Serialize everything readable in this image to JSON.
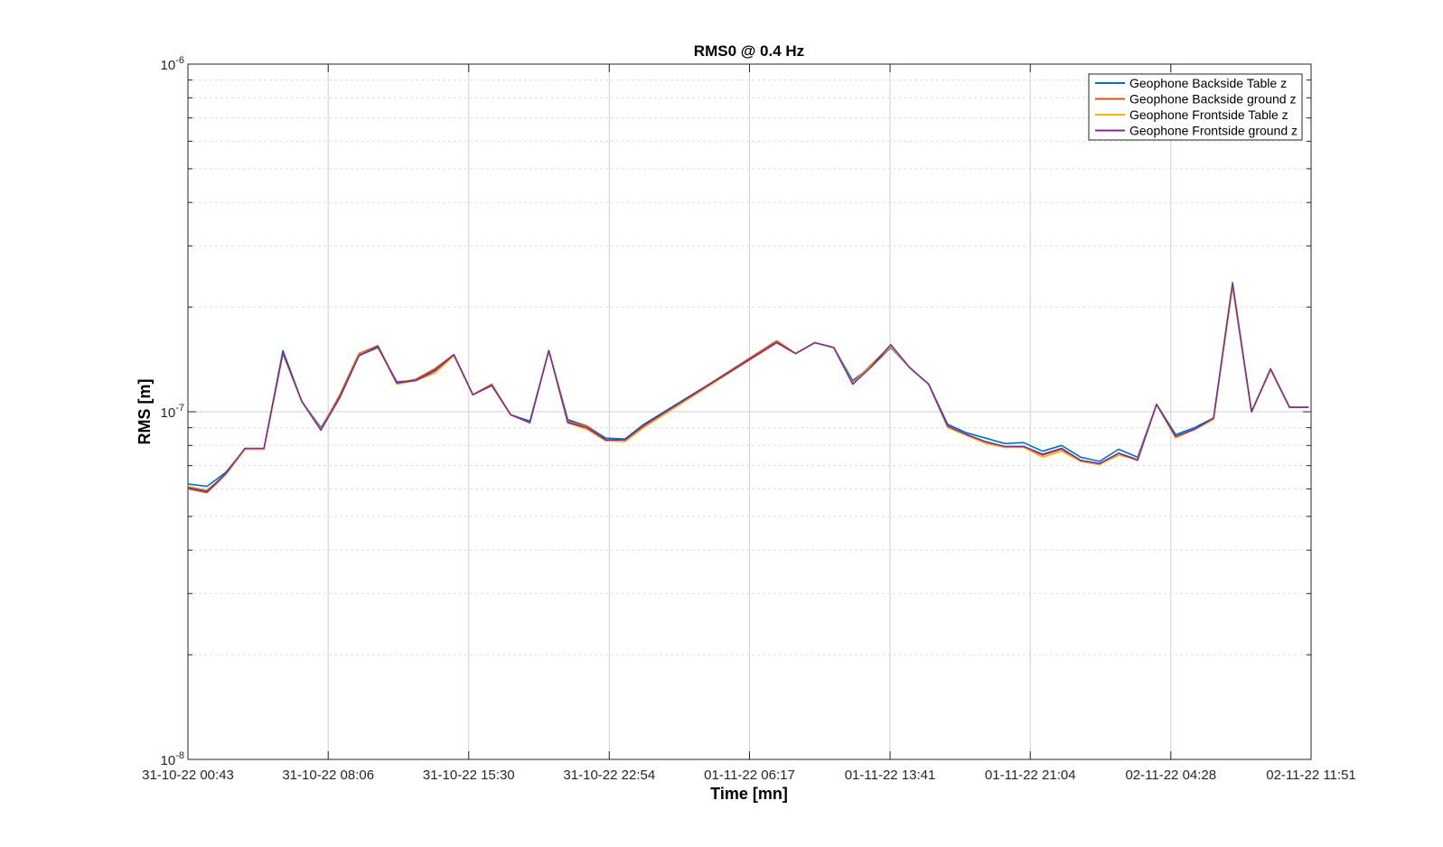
{
  "chart_data": {
    "type": "line",
    "title": "RMS0 @ 0.4 Hz",
    "xlabel": "Time [mn]",
    "ylabel": "RMS [m]",
    "y_scale": "log",
    "ylim": [
      1e-08,
      1e-06
    ],
    "y_ticks": [
      {
        "value": 1e-08,
        "base": "10",
        "exp": "-8"
      },
      {
        "value": 1e-07,
        "base": "10",
        "exp": "-7"
      },
      {
        "value": 1e-06,
        "base": "10",
        "exp": "-6"
      }
    ],
    "xlim": [
      "31-10-22 00:43",
      "02-11-22 11:51"
    ],
    "x_ticks": [
      "31-10-22 00:43",
      "31-10-22 08:06",
      "31-10-22 15:30",
      "31-10-22 22:54",
      "01-11-22 06:17",
      "01-11-22 13:41",
      "01-11-22 21:04",
      "02-11-22 04:28",
      "02-11-22 11:51"
    ],
    "grid": true,
    "minor_grid": true,
    "legend_position": "top-right",
    "x": [
      "31-10-22 00:43",
      "31-10-22 01:43",
      "31-10-22 02:43",
      "31-10-22 03:43",
      "31-10-22 04:43",
      "31-10-22 05:43",
      "31-10-22 06:43",
      "31-10-22 07:43",
      "31-10-22 08:43",
      "31-10-22 09:43",
      "31-10-22 10:43",
      "31-10-22 11:43",
      "31-10-22 12:43",
      "31-10-22 13:43",
      "31-10-22 14:43",
      "31-10-22 15:43",
      "31-10-22 16:43",
      "31-10-22 17:43",
      "31-10-22 18:43",
      "31-10-22 19:43",
      "31-10-22 20:43",
      "31-10-22 21:43",
      "31-10-22 22:43",
      "31-10-22 23:43",
      "01-11-22 00:43",
      "01-11-22 07:43",
      "01-11-22 08:43",
      "01-11-22 09:43",
      "01-11-22 10:43",
      "01-11-22 11:43",
      "01-11-22 12:43",
      "01-11-22 13:43",
      "01-11-22 14:43",
      "01-11-22 15:43",
      "01-11-22 16:43",
      "01-11-22 17:43",
      "01-11-22 18:43",
      "01-11-22 19:43",
      "01-11-22 20:43",
      "01-11-22 21:43",
      "01-11-22 22:43",
      "01-11-22 23:43",
      "02-11-22 00:43",
      "02-11-22 01:43",
      "02-11-22 02:43",
      "02-11-22 03:43",
      "02-11-22 04:43",
      "02-11-22 05:43",
      "02-11-22 06:43",
      "02-11-22 07:43",
      "02-11-22 08:43",
      "02-11-22 09:43",
      "02-11-22 10:43",
      "02-11-22 11:43"
    ],
    "series": [
      {
        "name": "Geophone Backside Table z",
        "color": "#0072BD",
        "values": [
          6.2e-08,
          6.1e-08,
          6.7e-08,
          7.8e-08,
          7.8e-08,
          1.5e-07,
          1.07e-07,
          9e-08,
          1.1e-07,
          1.45e-07,
          1.53e-07,
          1.22e-07,
          1.23e-07,
          1.32e-07,
          1.46e-07,
          1.12e-07,
          1.19e-07,
          9.8e-08,
          9.4e-08,
          1.5e-07,
          9.5e-08,
          9.1e-08,
          8.4e-08,
          8.35e-08,
          9.2e-08,
          1.58e-07,
          1.47e-07,
          1.58e-07,
          1.53e-07,
          1.23e-07,
          1.35e-07,
          1.53e-07,
          1.34e-07,
          1.2e-07,
          9.2e-08,
          8.7e-08,
          8.4e-08,
          8.1e-08,
          8.15e-08,
          7.7e-08,
          8e-08,
          7.4e-08,
          7.2e-08,
          7.8e-08,
          7.4e-08,
          1.05e-07,
          8.6e-08,
          9e-08,
          9.6e-08,
          2.3e-07,
          1e-07,
          1.32e-07,
          1.03e-07,
          1.03e-07
        ]
      },
      {
        "name": "Geophone Backside ground z",
        "color": "#D95319",
        "values": [
          6e-08,
          5.85e-08,
          6.6e-08,
          7.8e-08,
          7.8e-08,
          1.47e-07,
          1.07e-07,
          8.9e-08,
          1.12e-07,
          1.47e-07,
          1.55e-07,
          1.21e-07,
          1.24e-07,
          1.33e-07,
          1.46e-07,
          1.12e-07,
          1.2e-07,
          9.8e-08,
          9.3e-08,
          1.5e-07,
          9.4e-08,
          9.1e-08,
          8.3e-08,
          8.3e-08,
          9.1e-08,
          1.6e-07,
          1.47e-07,
          1.58e-07,
          1.53e-07,
          1.21e-07,
          1.37e-07,
          1.55e-07,
          1.34e-07,
          1.2e-07,
          9.1e-08,
          8.6e-08,
          8.2e-08,
          7.9e-08,
          7.95e-08,
          7.5e-08,
          7.8e-08,
          7.2e-08,
          7.05e-08,
          7.6e-08,
          7.3e-08,
          1.05e-07,
          8.5e-08,
          8.9e-08,
          9.5e-08,
          2.3e-07,
          1e-07,
          1.32e-07,
          1.03e-07,
          1.03e-07
        ]
      },
      {
        "name": "Geophone Frontside Table z",
        "color": "#EDB120",
        "values": [
          6.1e-08,
          5.95e-08,
          6.6e-08,
          7.8e-08,
          7.8e-08,
          1.47e-07,
          1.07e-07,
          8.9e-08,
          1.1e-07,
          1.46e-07,
          1.54e-07,
          1.2e-07,
          1.23e-07,
          1.29e-07,
          1.45e-07,
          1.12e-07,
          1.19e-07,
          9.8e-08,
          9.3e-08,
          1.5e-07,
          9.3e-08,
          8.9e-08,
          8.25e-08,
          8.2e-08,
          9e-08,
          1.58e-07,
          1.47e-07,
          1.58e-07,
          1.53e-07,
          1.21e-07,
          1.36e-07,
          1.54e-07,
          1.34e-07,
          1.2e-07,
          9e-08,
          8.55e-08,
          8.1e-08,
          7.9e-08,
          7.9e-08,
          7.4e-08,
          7.7e-08,
          7.2e-08,
          7.05e-08,
          7.5e-08,
          7.3e-08,
          1.05e-07,
          8.4e-08,
          8.9e-08,
          9.5e-08,
          2.3e-07,
          1e-07,
          1.32e-07,
          1.03e-07,
          1.03e-07
        ]
      },
      {
        "name": "Geophone Frontside ground z",
        "color": "#7E2F8E",
        "values": [
          6.05e-08,
          5.9e-08,
          6.65e-08,
          7.85e-08,
          7.85e-08,
          1.48e-07,
          1.07e-07,
          8.85e-08,
          1.1e-07,
          1.45e-07,
          1.54e-07,
          1.21e-07,
          1.23e-07,
          1.31e-07,
          1.46e-07,
          1.12e-07,
          1.19e-07,
          9.8e-08,
          9.3e-08,
          1.5e-07,
          9.3e-08,
          9e-08,
          8.3e-08,
          8.3e-08,
          9.15e-08,
          1.58e-07,
          1.47e-07,
          1.58e-07,
          1.53e-07,
          1.2e-07,
          1.35e-07,
          1.56e-07,
          1.34e-07,
          1.2e-07,
          9.1e-08,
          8.6e-08,
          8.2e-08,
          7.95e-08,
          7.95e-08,
          7.55e-08,
          7.85e-08,
          7.25e-08,
          7.1e-08,
          7.6e-08,
          7.25e-08,
          1.05e-07,
          8.5e-08,
          8.9e-08,
          9.6e-08,
          2.35e-07,
          1e-07,
          1.33e-07,
          1.03e-07,
          1.03e-07
        ]
      }
    ]
  }
}
